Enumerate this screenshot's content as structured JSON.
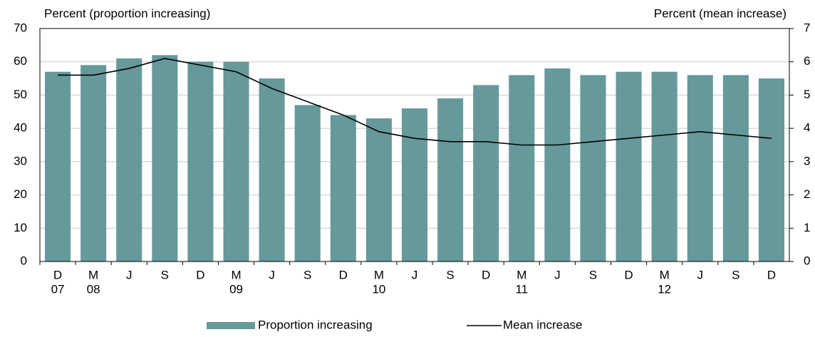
{
  "chart_data": {
    "type": "bar",
    "y_label": "Percent (proportion increasing)",
    "y2_label": "Percent (mean increase)",
    "categories": [
      "D",
      "M",
      "J",
      "S",
      "D",
      "M",
      "J",
      "S",
      "D",
      "M",
      "J",
      "S",
      "D",
      "M",
      "J",
      "S",
      "D",
      "M",
      "J",
      "S",
      "D"
    ],
    "category_years": [
      "07",
      "08",
      null,
      null,
      null,
      "09",
      null,
      null,
      null,
      "10",
      null,
      null,
      null,
      "11",
      null,
      null,
      null,
      "12",
      null,
      null,
      null
    ],
    "series": [
      {
        "name": "Proportion increasing",
        "type": "bar",
        "color": "#669999",
        "values": [
          57,
          59,
          61,
          62,
          60,
          60,
          55,
          47,
          44,
          43,
          46,
          49,
          53,
          56,
          58,
          56,
          57,
          57,
          56,
          56,
          55
        ]
      },
      {
        "name": "Mean increase",
        "type": "line",
        "color": "#000000",
        "axis": "y2",
        "values": [
          5.6,
          5.6,
          5.8,
          6.1,
          5.9,
          5.7,
          5.2,
          4.8,
          4.4,
          3.9,
          3.7,
          3.6,
          3.6,
          3.5,
          3.5,
          3.6,
          3.7,
          3.8,
          3.9,
          3.8,
          3.7
        ]
      }
    ],
    "ylim": [
      0,
      70
    ],
    "yticks": [
      0,
      10,
      20,
      30,
      40,
      50,
      60,
      70
    ],
    "y2lim": [
      0,
      7
    ],
    "y2ticks": [
      0,
      1,
      2,
      3,
      4,
      5,
      6,
      7
    ],
    "grid": true,
    "legend": "bottom"
  }
}
